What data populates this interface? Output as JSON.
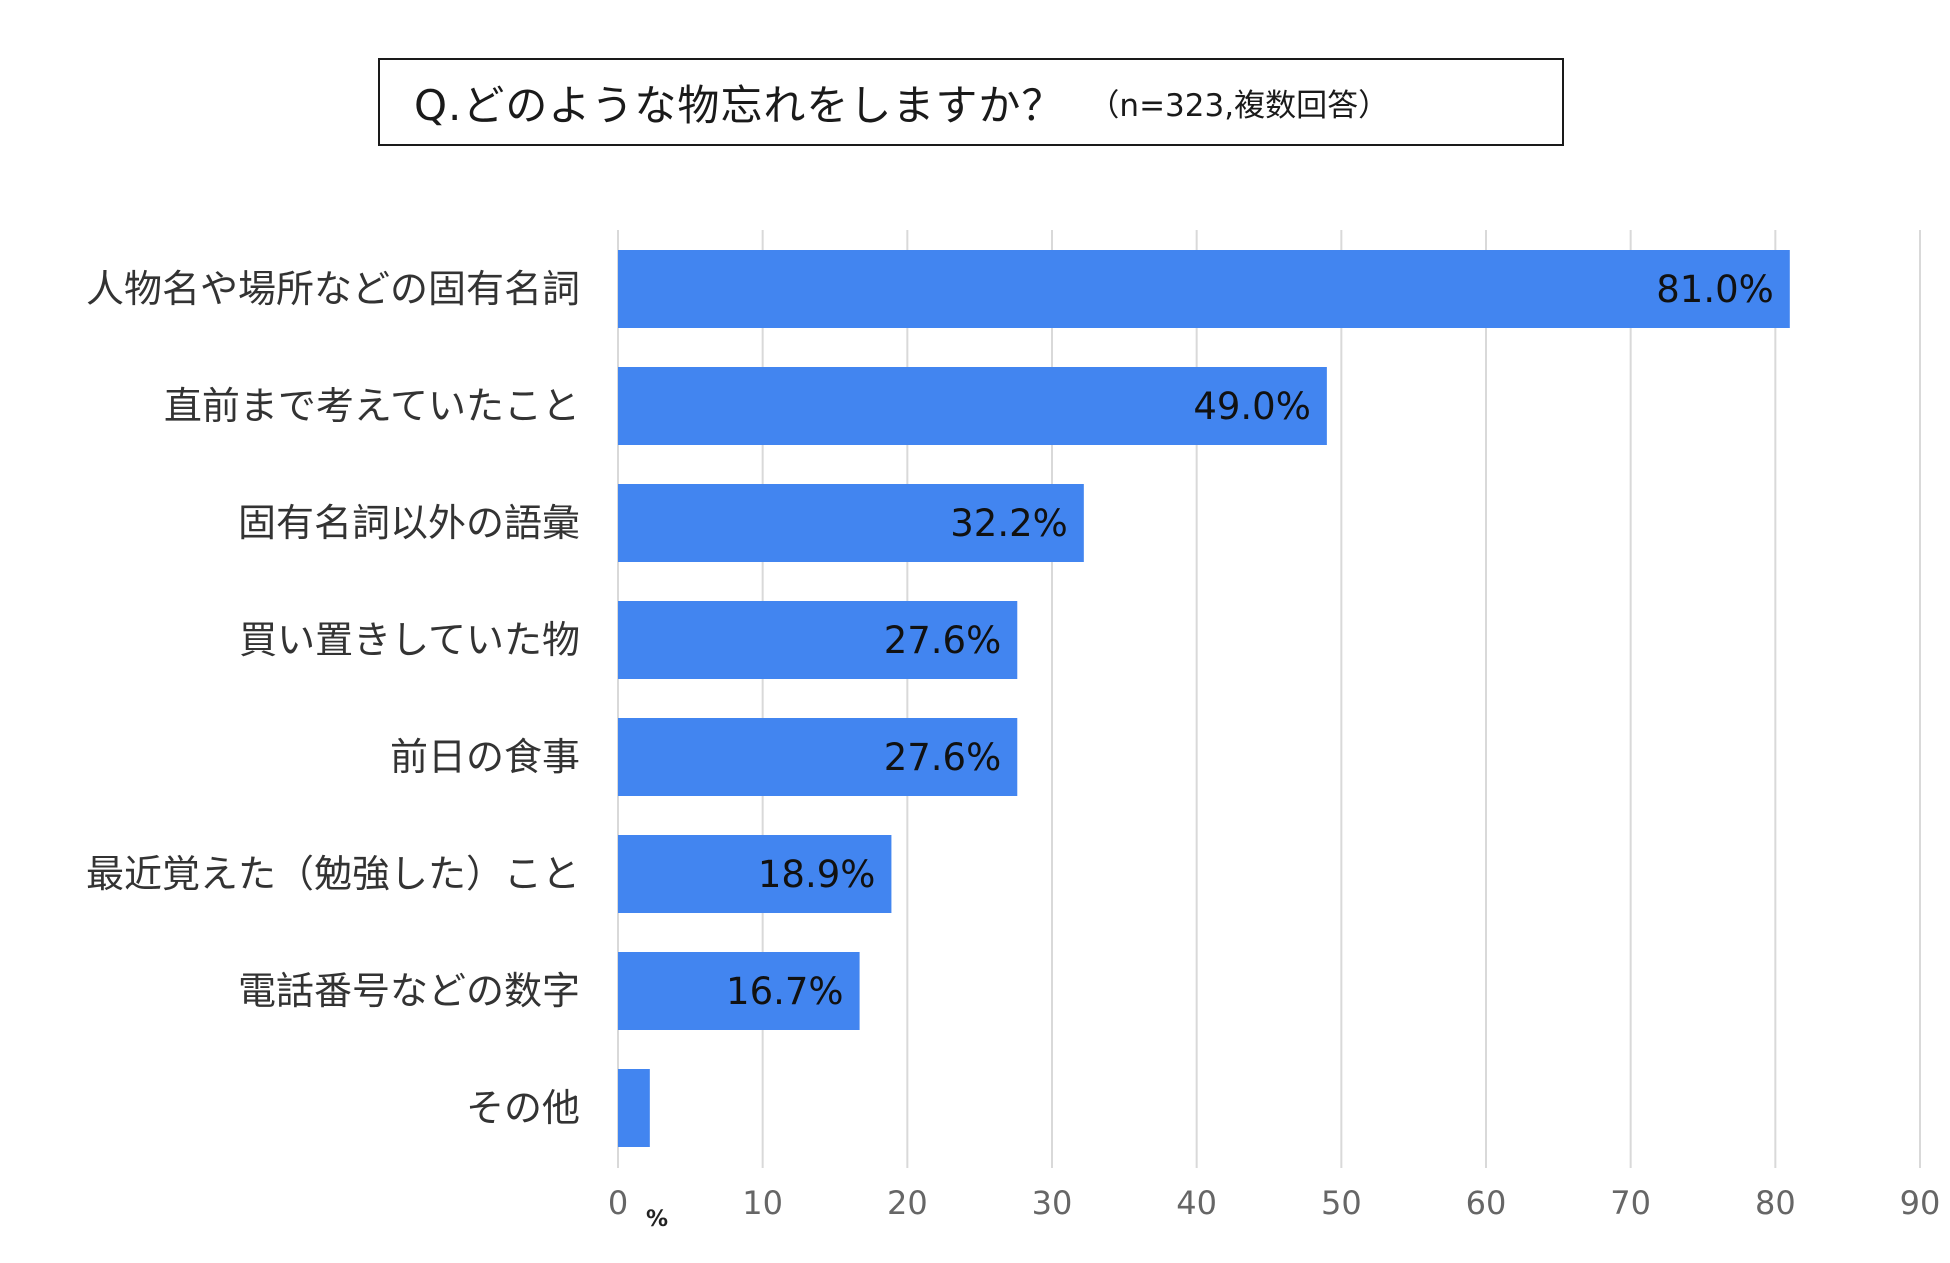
{
  "title": {
    "main": "Q.どのような物忘れをしますか？",
    "sub": "（n=323,複数回答）"
  },
  "chart_data": {
    "type": "bar",
    "orientation": "horizontal",
    "categories": [
      "人物名や場所などの固有名詞",
      "直前まで考えていたこと",
      "固有名詞以外の語彙",
      "買い置きしていた物",
      "前日の食事",
      "最近覚えた（勉強した）こと",
      "電話番号などの数字",
      "その他"
    ],
    "values": [
      81.0,
      49.0,
      32.2,
      27.6,
      27.6,
      18.9,
      16.7,
      2.2
    ],
    "data_labels": [
      "81.0%",
      "49.0%",
      "32.2%",
      "27.6%",
      "27.6%",
      "18.9%",
      "16.7%",
      ""
    ],
    "xlim": [
      0,
      90
    ],
    "xticks": [
      0,
      10,
      20,
      30,
      40,
      50,
      60,
      70,
      80,
      90
    ],
    "xunit": "%",
    "grid": true,
    "bar_color": "#4285f0",
    "grid_color": "#d9d9d9"
  }
}
